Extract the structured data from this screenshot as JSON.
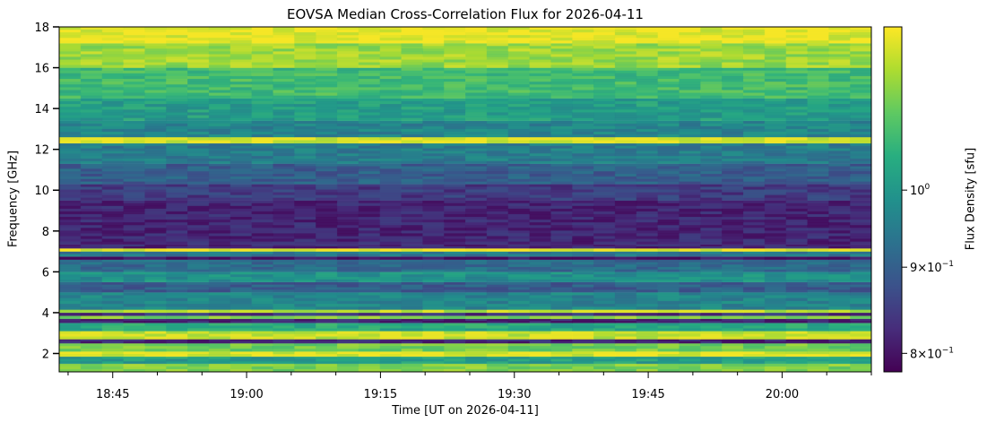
{
  "chart_data": {
    "type": "heatmap",
    "title": "EOVSA Median Cross-Correlation Flux for 2026-04-11",
    "xlabel": "Time [UT on 2026-04-11]",
    "ylabel": "Frequency [GHz]",
    "colorbar_label": "Flux Density [sfu]",
    "colormap": "viridis",
    "colorbar_scale": "log",
    "xlim": [
      "18:39",
      "20:10"
    ],
    "ylim": [
      1.1,
      18.0
    ],
    "x_ticks": [
      {
        "value": "18:45",
        "label": "18:45"
      },
      {
        "value": "19:00",
        "label": "19:00"
      },
      {
        "value": "19:15",
        "label": "19:15"
      },
      {
        "value": "19:30",
        "label": "19:30"
      },
      {
        "value": "19:45",
        "label": "19:45"
      },
      {
        "value": "20:00",
        "label": "20:00"
      }
    ],
    "x_minor_ticks": [
      "18:40",
      "18:50",
      "18:55",
      "19:05",
      "19:10",
      "19:20",
      "19:25",
      "19:35",
      "19:40",
      "19:50",
      "19:55",
      "20:05",
      "20:10"
    ],
    "y_ticks": [
      {
        "value": 2,
        "label": "2"
      },
      {
        "value": 4,
        "label": "4"
      },
      {
        "value": 6,
        "label": "6"
      },
      {
        "value": 8,
        "label": "8"
      },
      {
        "value": 10,
        "label": "10"
      },
      {
        "value": 12,
        "label": "12"
      },
      {
        "value": 14,
        "label": "14"
      },
      {
        "value": 16,
        "label": "16"
      },
      {
        "value": 18,
        "label": "18"
      }
    ],
    "colorbar_range": [
      0.78,
      1.25
    ],
    "colorbar_ticks": [
      {
        "value": 0.8,
        "base": "8",
        "exp": "−1"
      },
      {
        "value": 0.9,
        "base": "9",
        "exp": "−1"
      },
      {
        "value": 1.0,
        "base": "10",
        "exp": "0"
      }
    ],
    "frequency_bands": [
      {
        "from": 1.1,
        "to": 1.5,
        "level": 0.8
      },
      {
        "from": 1.5,
        "to": 1.85,
        "level": 0.55
      },
      {
        "from": 1.85,
        "to": 2.1,
        "level": 0.95
      },
      {
        "from": 2.1,
        "to": 2.5,
        "level": 0.78
      },
      {
        "from": 2.5,
        "to": 2.7,
        "level": 0.1
      },
      {
        "from": 2.7,
        "to": 3.1,
        "level": 0.92
      },
      {
        "from": 3.1,
        "to": 3.5,
        "level": 0.6
      },
      {
        "from": 3.5,
        "to": 3.7,
        "level": 0.1
      },
      {
        "from": 3.7,
        "to": 3.85,
        "level": 0.8
      },
      {
        "from": 3.85,
        "to": 4.0,
        "level": 0.15
      },
      {
        "from": 4.0,
        "to": 4.15,
        "level": 0.9
      },
      {
        "from": 4.15,
        "to": 5.0,
        "level": 0.45
      },
      {
        "from": 5.0,
        "to": 5.5,
        "level": 0.3
      },
      {
        "from": 5.5,
        "to": 6.0,
        "level": 0.5
      },
      {
        "from": 6.0,
        "to": 6.6,
        "level": 0.35
      },
      {
        "from": 6.6,
        "to": 6.75,
        "level": 0.05
      },
      {
        "from": 6.75,
        "to": 7.0,
        "level": 0.4
      },
      {
        "from": 7.0,
        "to": 7.15,
        "level": 0.98
      },
      {
        "from": 7.15,
        "to": 7.35,
        "level": 0.1
      },
      {
        "from": 7.35,
        "to": 9.5,
        "level": 0.1
      },
      {
        "from": 9.5,
        "to": 10.3,
        "level": 0.18
      },
      {
        "from": 10.3,
        "to": 11.3,
        "level": 0.3
      },
      {
        "from": 11.3,
        "to": 12.3,
        "level": 0.42
      },
      {
        "from": 12.3,
        "to": 12.6,
        "level": 0.95
      },
      {
        "from": 12.6,
        "to": 13.4,
        "level": 0.45
      },
      {
        "from": 13.4,
        "to": 14.5,
        "level": 0.55
      },
      {
        "from": 14.5,
        "to": 16.0,
        "level": 0.68
      },
      {
        "from": 16.0,
        "to": 17.2,
        "level": 0.85
      },
      {
        "from": 17.2,
        "to": 18.0,
        "level": 0.97
      }
    ],
    "grid": false
  }
}
